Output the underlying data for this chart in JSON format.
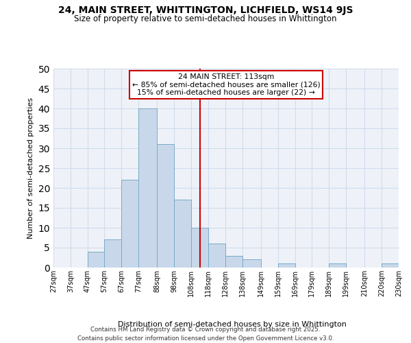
{
  "title": "24, MAIN STREET, WHITTINGTON, LICHFIELD, WS14 9JS",
  "subtitle": "Size of property relative to semi-detached houses in Whittington",
  "xlabel": "Distribution of semi-detached houses by size in Whittington",
  "ylabel": "Number of semi-detached properties",
  "bin_edges": [
    27,
    37,
    47,
    57,
    67,
    77,
    88,
    98,
    108,
    118,
    128,
    138,
    149,
    159,
    169,
    179,
    189,
    199,
    210,
    220,
    230
  ],
  "bin_labels": [
    "27sqm",
    "37sqm",
    "47sqm",
    "57sqm",
    "67sqm",
    "77sqm",
    "88sqm",
    "98sqm",
    "108sqm",
    "118sqm",
    "128sqm",
    "138sqm",
    "149sqm",
    "159sqm",
    "169sqm",
    "179sqm",
    "189sqm",
    "199sqm",
    "210sqm",
    "220sqm",
    "230sqm"
  ],
  "counts": [
    0,
    0,
    4,
    7,
    22,
    40,
    31,
    17,
    10,
    6,
    3,
    2,
    0,
    1,
    0,
    0,
    1,
    0,
    0,
    1
  ],
  "bar_color": "#c8d8ea",
  "bar_edge_color": "#7aaac8",
  "grid_color": "#d0dcec",
  "vline_x": 113,
  "vline_color": "#cc0000",
  "annotation_title": "24 MAIN STREET: 113sqm",
  "annotation_line1": "← 85% of semi-detached houses are smaller (126)",
  "annotation_line2": "15% of semi-detached houses are larger (22) →",
  "annotation_box_color": "#cc0000",
  "ylim": [
    0,
    50
  ],
  "yticks": [
    0,
    5,
    10,
    15,
    20,
    25,
    30,
    35,
    40,
    45,
    50
  ],
  "footer_line1": "Contains HM Land Registry data © Crown copyright and database right 2025.",
  "footer_line2": "Contains public sector information licensed under the Open Government Licence v3.0.",
  "bg_color": "#ffffff",
  "plot_bg_color": "#eef2f8"
}
